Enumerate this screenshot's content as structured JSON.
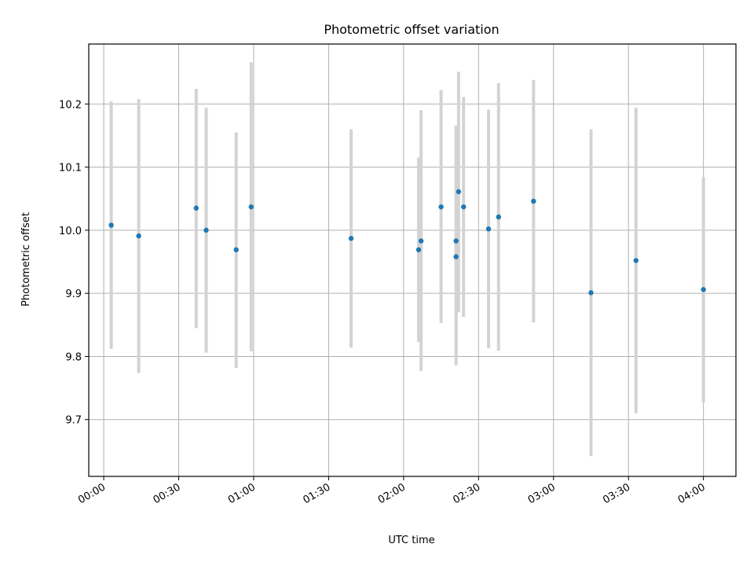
{
  "chart_data": {
    "type": "scatter",
    "title": "Photometric offset variation",
    "xlabel": "UTC time",
    "ylabel": "Photometric offset",
    "x_axis_type": "time",
    "xlim": [
      "23:54",
      "04:13"
    ],
    "ylim": [
      9.61,
      10.295
    ],
    "x_ticks": [
      "00:00",
      "00:30",
      "01:00",
      "01:30",
      "02:00",
      "02:30",
      "03:00",
      "03:30",
      "04:00"
    ],
    "y_ticks": [
      9.7,
      9.8,
      9.9,
      10.0,
      10.1,
      10.2
    ],
    "y_tick_labels": [
      "9.7",
      "9.8",
      "9.9",
      "10.0",
      "10.1",
      "10.2"
    ],
    "grid": true,
    "point_color": "#1f77b4",
    "errorbar_color": "#d3d3d3",
    "points": [
      {
        "x": "00:03",
        "y": 10.008,
        "ylow": 9.812,
        "yhigh": 10.204
      },
      {
        "x": "00:14",
        "y": 9.991,
        "ylow": 9.774,
        "yhigh": 10.208
      },
      {
        "x": "00:37",
        "y": 10.035,
        "ylow": 9.845,
        "yhigh": 10.224
      },
      {
        "x": "00:41",
        "y": 10.0,
        "ylow": 9.806,
        "yhigh": 10.194
      },
      {
        "x": "00:53",
        "y": 9.969,
        "ylow": 9.782,
        "yhigh": 10.155
      },
      {
        "x": "00:59",
        "y": 10.037,
        "ylow": 9.808,
        "yhigh": 10.266
      },
      {
        "x": "01:39",
        "y": 9.987,
        "ylow": 9.814,
        "yhigh": 10.16
      },
      {
        "x": "02:06",
        "y": 9.969,
        "ylow": 9.823,
        "yhigh": 10.115
      },
      {
        "x": "02:07",
        "y": 9.983,
        "ylow": 9.777,
        "yhigh": 10.19
      },
      {
        "x": "02:15",
        "y": 10.037,
        "ylow": 9.853,
        "yhigh": 10.222
      },
      {
        "x": "02:21",
        "y": 9.958,
        "ylow": 9.786,
        "yhigh": 10.131
      },
      {
        "x": "02:21",
        "y": 9.983,
        "ylow": 9.801,
        "yhigh": 10.166
      },
      {
        "x": "02:22",
        "y": 10.061,
        "ylow": 9.87,
        "yhigh": 10.251
      },
      {
        "x": "02:24",
        "y": 10.037,
        "ylow": 9.863,
        "yhigh": 10.211
      },
      {
        "x": "02:34",
        "y": 10.002,
        "ylow": 9.813,
        "yhigh": 10.191
      },
      {
        "x": "02:38",
        "y": 10.021,
        "ylow": 9.809,
        "yhigh": 10.233
      },
      {
        "x": "02:52",
        "y": 10.046,
        "ylow": 9.854,
        "yhigh": 10.238
      },
      {
        "x": "03:15",
        "y": 9.901,
        "ylow": 9.642,
        "yhigh": 10.16
      },
      {
        "x": "03:33",
        "y": 9.952,
        "ylow": 9.71,
        "yhigh": 10.194
      },
      {
        "x": "04:00",
        "y": 9.906,
        "ylow": 9.727,
        "yhigh": 10.084
      }
    ]
  }
}
